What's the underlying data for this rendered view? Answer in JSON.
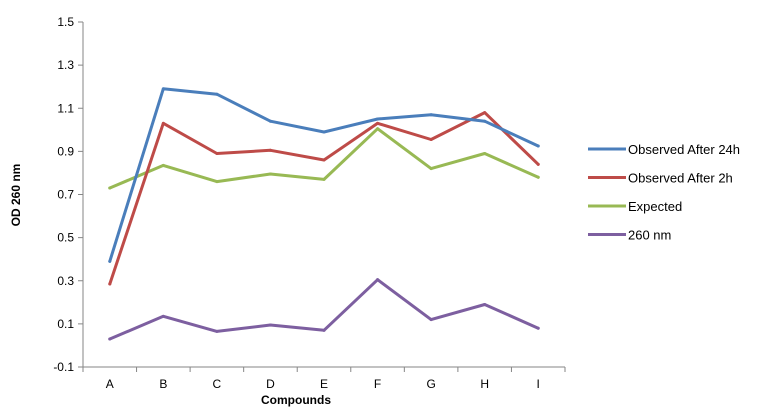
{
  "chart_data": {
    "type": "line",
    "title": "",
    "xlabel": "Compounds",
    "ylabel": "OD 260 nm",
    "categories": [
      "A",
      "B",
      "C",
      "D",
      "E",
      "F",
      "G",
      "H",
      "I"
    ],
    "ylim": [
      -0.1,
      1.5
    ],
    "yticks": [
      -0.1,
      0.1,
      0.3,
      0.5,
      0.7,
      0.9,
      1.1,
      1.3,
      1.5
    ],
    "grid": false,
    "legend_position": "right",
    "series": [
      {
        "name": "Observed After 24h",
        "color": "#4a7ebb",
        "values": [
          0.39,
          1.19,
          1.165,
          1.04,
          0.99,
          1.05,
          1.07,
          1.04,
          0.925
        ]
      },
      {
        "name": "Observed After 2h",
        "color": "#be4b48",
        "values": [
          0.285,
          1.03,
          0.89,
          0.905,
          0.86,
          1.03,
          0.955,
          1.08,
          0.84
        ]
      },
      {
        "name": "Expected",
        "color": "#98b954",
        "values": [
          0.73,
          0.835,
          0.76,
          0.795,
          0.77,
          1.005,
          0.82,
          0.89,
          0.78
        ]
      },
      {
        "name": "260 nm",
        "color": "#7d5fa0",
        "values": [
          0.03,
          0.135,
          0.065,
          0.095,
          0.07,
          0.305,
          0.12,
          0.19,
          0.08
        ]
      }
    ]
  }
}
